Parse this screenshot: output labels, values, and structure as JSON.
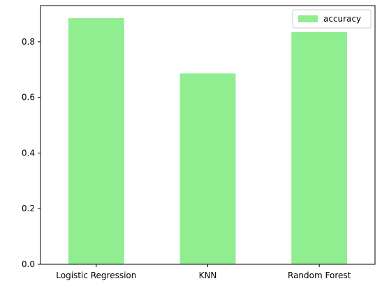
{
  "chart_data": {
    "type": "bar",
    "categories": [
      "Logistic Regression",
      "KNN",
      "Random Forest"
    ],
    "series": [
      {
        "name": "accuracy",
        "values": [
          0.885,
          0.686,
          0.835
        ],
        "color": "#90ee90"
      }
    ],
    "title": "",
    "xlabel": "",
    "ylabel": "",
    "ylim": [
      0,
      0.93
    ],
    "yticks": [
      0.0,
      0.2,
      0.4,
      0.6,
      0.8
    ],
    "ytick_labels": [
      "0.0",
      "0.2",
      "0.4",
      "0.6",
      "0.8"
    ],
    "grid": false,
    "legend": {
      "position": "top-right",
      "label": "accuracy"
    }
  }
}
